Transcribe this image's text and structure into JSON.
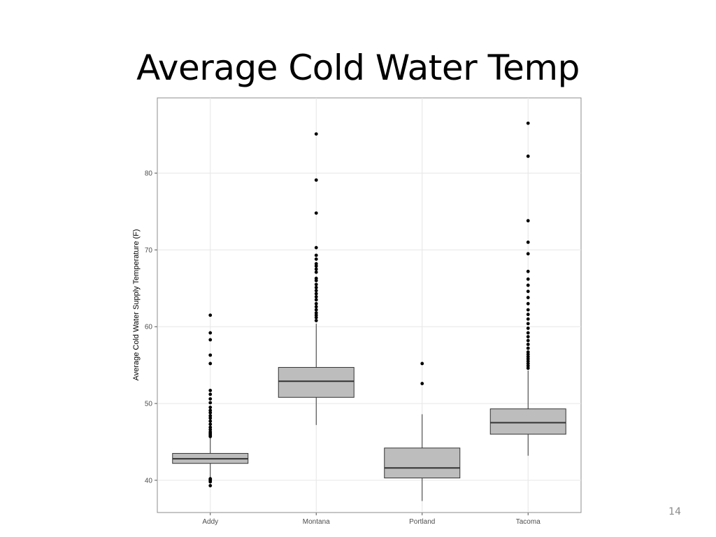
{
  "slide": {
    "title": "Average Cold Water Temp",
    "page_number": "14"
  },
  "chart_data": {
    "type": "boxplot",
    "title": "",
    "xlabel": "",
    "ylabel": "Average Cold Water Supply Temperature (F)",
    "ylim": [
      35.8,
      89.8
    ],
    "y_ticks": [
      40,
      50,
      60,
      70,
      80
    ],
    "grid": true,
    "categories": [
      "Addy",
      "Montana",
      "Portland",
      "Tacoma"
    ],
    "series": [
      {
        "category": "Addy",
        "whisker_low": 40.4,
        "q1": 42.2,
        "median": 42.8,
        "q3": 43.5,
        "whisker_high": 45.5,
        "outliers": [
          39.3,
          39.8,
          40.0,
          40.1,
          40.2,
          45.7,
          45.9,
          46.1,
          46.3,
          46.6,
          46.9,
          47.3,
          47.7,
          48.1,
          48.4,
          48.8,
          49.1,
          49.5,
          50.1,
          50.6,
          51.2,
          51.7,
          55.2,
          56.3,
          58.3,
          59.2,
          61.5
        ]
      },
      {
        "category": "Montana",
        "whisker_low": 47.2,
        "q1": 50.8,
        "median": 52.9,
        "q3": 54.7,
        "whisker_high": 60.4,
        "outliers": [
          60.8,
          61.2,
          61.5,
          61.8,
          62.2,
          62.6,
          63.0,
          63.5,
          63.9,
          64.3,
          64.7,
          65.1,
          65.5,
          66.0,
          66.3,
          67.1,
          67.5,
          67.9,
          68.2,
          68.8,
          69.3,
          70.3,
          74.8,
          79.1,
          85.1
        ]
      },
      {
        "category": "Portland",
        "whisker_low": 37.3,
        "q1": 40.3,
        "median": 41.6,
        "q3": 44.2,
        "whisker_high": 48.6,
        "outliers": [
          52.6,
          55.2
        ]
      },
      {
        "category": "Tacoma",
        "whisker_low": 43.2,
        "q1": 46.0,
        "median": 47.5,
        "q3": 49.3,
        "whisker_high": 54.3,
        "outliers": [
          54.6,
          54.9,
          55.2,
          55.5,
          55.8,
          56.1,
          56.4,
          56.7,
          57.2,
          57.7,
          58.2,
          58.7,
          59.2,
          59.8,
          60.4,
          61.0,
          61.6,
          62.2,
          63.0,
          63.8,
          64.6,
          65.4,
          66.2,
          67.2,
          69.5,
          71.0,
          73.8,
          82.2,
          86.5
        ]
      }
    ],
    "colors": {
      "box_fill": "#bdbdbd",
      "box_stroke": "#333333",
      "outlier": "#000000",
      "grid": "#e6e6e6",
      "panel_border": "#8c8c8c"
    }
  }
}
